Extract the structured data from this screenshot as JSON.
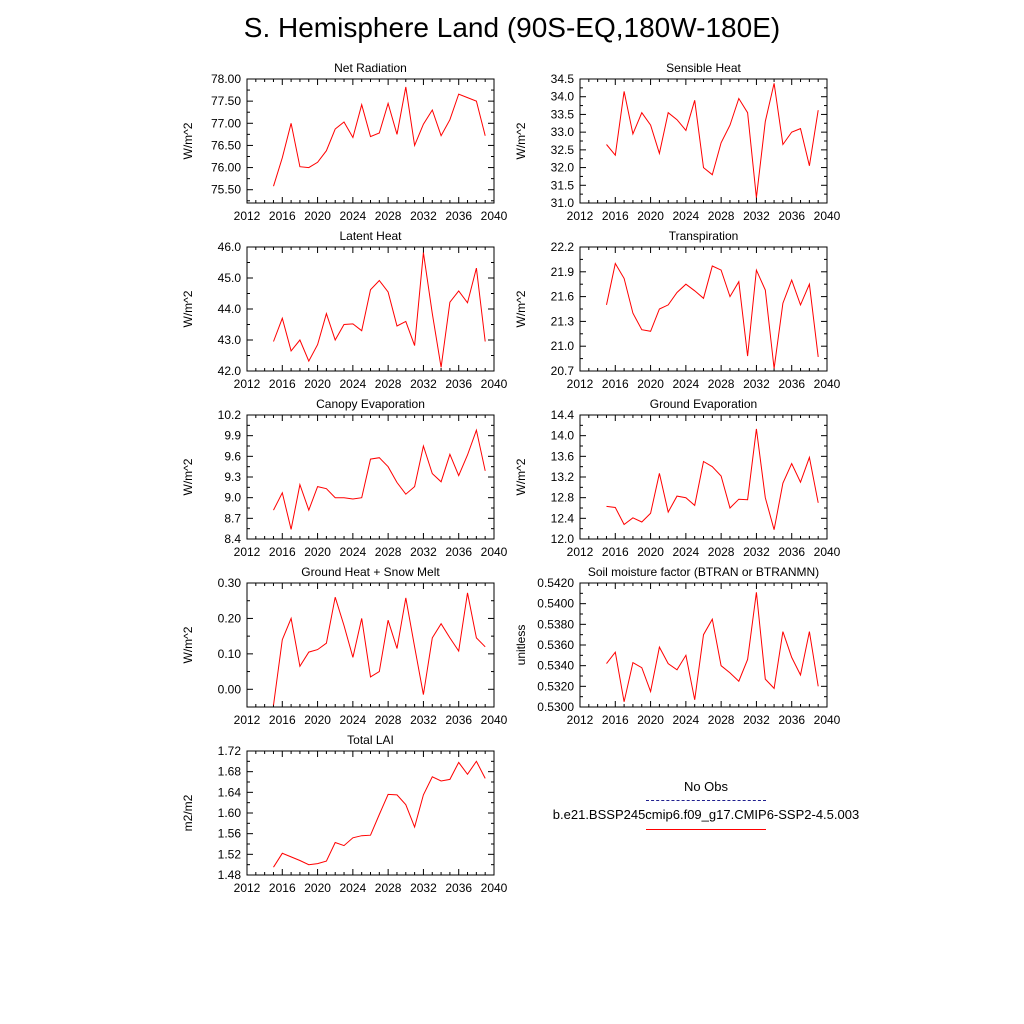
{
  "title": "S. Hemisphere Land (90S-EQ,180W-180E)",
  "legend": {
    "obs_label": "No Obs",
    "obs_color": "#1f1f8f",
    "model_label": "b.e21.BSSP245cmip6.f09_g17.CMIP6-SSP2-4.5.003",
    "model_color": "#ff0000"
  },
  "chart_data": [
    {
      "type": "line",
      "title": "Net Radiation",
      "ylabel": "W/m^2",
      "xlabel": "",
      "xlim": [
        2012,
        2040
      ],
      "ylim": [
        75.2,
        78.0
      ],
      "xticks": [
        "2012",
        "2016",
        "2020",
        "2024",
        "2028",
        "2032",
        "2036",
        "2040"
      ],
      "yticks": [
        "75.50",
        "76.00",
        "76.50",
        "77.00",
        "77.50",
        "78.00"
      ],
      "x": [
        2015,
        2016,
        2017,
        2018,
        2019,
        2020,
        2021,
        2022,
        2023,
        2024,
        2025,
        2026,
        2027,
        2028,
        2029,
        2030,
        2031,
        2032,
        2033,
        2034,
        2035,
        2036,
        2037,
        2038,
        2039
      ],
      "values": [
        75.58,
        76.22,
        77.0,
        76.02,
        76.0,
        76.12,
        76.38,
        76.87,
        77.03,
        76.68,
        77.42,
        76.7,
        76.78,
        77.45,
        76.75,
        77.82,
        76.5,
        76.98,
        77.3,
        76.72,
        77.08,
        77.66,
        77.58,
        77.5,
        76.72
      ]
    },
    {
      "type": "line",
      "title": "Sensible Heat",
      "ylabel": "W/m^2",
      "xlabel": "",
      "xlim": [
        2012,
        2040
      ],
      "ylim": [
        31.0,
        34.5
      ],
      "xticks": [
        "2012",
        "2016",
        "2020",
        "2024",
        "2028",
        "2032",
        "2036",
        "2040"
      ],
      "yticks": [
        "31.0",
        "31.5",
        "32.0",
        "32.5",
        "33.0",
        "33.5",
        "34.0",
        "34.5"
      ],
      "x": [
        2015,
        2016,
        2017,
        2018,
        2019,
        2020,
        2021,
        2022,
        2023,
        2024,
        2025,
        2026,
        2027,
        2028,
        2029,
        2030,
        2031,
        2032,
        2033,
        2034,
        2035,
        2036,
        2037,
        2038,
        2039
      ],
      "values": [
        32.65,
        32.35,
        34.15,
        32.95,
        33.55,
        33.2,
        32.4,
        33.55,
        33.35,
        33.05,
        33.9,
        32.0,
        31.8,
        32.7,
        33.2,
        33.95,
        33.55,
        31.15,
        33.3,
        34.38,
        32.65,
        33.0,
        33.1,
        32.05,
        33.62
      ]
    },
    {
      "type": "line",
      "title": "Latent Heat",
      "ylabel": "W/m^2",
      "xlabel": "",
      "xlim": [
        2012,
        2040
      ],
      "ylim": [
        42.0,
        46.0
      ],
      "xticks": [
        "2012",
        "2016",
        "2020",
        "2024",
        "2028",
        "2032",
        "2036",
        "2040"
      ],
      "yticks": [
        "42.0",
        "43.0",
        "44.0",
        "45.0",
        "46.0"
      ],
      "x": [
        2015,
        2016,
        2017,
        2018,
        2019,
        2020,
        2021,
        2022,
        2023,
        2024,
        2025,
        2026,
        2027,
        2028,
        2029,
        2030,
        2031,
        2032,
        2033,
        2034,
        2035,
        2036,
        2037,
        2038,
        2039
      ],
      "values": [
        42.95,
        43.7,
        42.65,
        43.0,
        42.32,
        42.85,
        43.85,
        43.0,
        43.5,
        43.52,
        43.3,
        44.62,
        44.92,
        44.55,
        43.45,
        43.6,
        42.82,
        45.82,
        43.85,
        42.12,
        44.22,
        44.58,
        44.2,
        45.32,
        42.95
      ]
    },
    {
      "type": "line",
      "title": "Transpiration",
      "ylabel": "W/m^2",
      "xlabel": "",
      "xlim": [
        2012,
        2040
      ],
      "ylim": [
        20.7,
        22.2
      ],
      "xticks": [
        "2012",
        "2016",
        "2020",
        "2024",
        "2028",
        "2032",
        "2036",
        "2040"
      ],
      "yticks": [
        "20.7",
        "21.0",
        "21.3",
        "21.6",
        "21.9",
        "22.2"
      ],
      "x": [
        2015,
        2016,
        2017,
        2018,
        2019,
        2020,
        2021,
        2022,
        2023,
        2024,
        2025,
        2026,
        2027,
        2028,
        2029,
        2030,
        2031,
        2032,
        2033,
        2034,
        2035,
        2036,
        2037,
        2038,
        2039
      ],
      "values": [
        21.5,
        22.0,
        21.82,
        21.4,
        21.2,
        21.18,
        21.45,
        21.5,
        21.65,
        21.75,
        21.67,
        21.58,
        21.97,
        21.92,
        21.6,
        21.78,
        20.88,
        21.92,
        21.68,
        20.73,
        21.52,
        21.8,
        21.5,
        21.75,
        20.87
      ]
    },
    {
      "type": "line",
      "title": "Canopy Evaporation",
      "ylabel": "W/m^2",
      "xlabel": "",
      "xlim": [
        2012,
        2040
      ],
      "ylim": [
        8.4,
        10.2
      ],
      "xticks": [
        "2012",
        "2016",
        "2020",
        "2024",
        "2028",
        "2032",
        "2036",
        "2040"
      ],
      "yticks": [
        "8.4",
        "8.7",
        "9.0",
        "9.3",
        "9.6",
        "9.9",
        "10.2"
      ],
      "x": [
        2015,
        2016,
        2017,
        2018,
        2019,
        2020,
        2021,
        2022,
        2023,
        2024,
        2025,
        2026,
        2027,
        2028,
        2029,
        2030,
        2031,
        2032,
        2033,
        2034,
        2035,
        2036,
        2037,
        2038,
        2039
      ],
      "values": [
        8.82,
        9.07,
        8.54,
        9.19,
        8.82,
        9.16,
        9.13,
        9.0,
        9.0,
        8.98,
        9.0,
        9.56,
        9.58,
        9.45,
        9.22,
        9.05,
        9.16,
        9.75,
        9.35,
        9.23,
        9.63,
        9.32,
        9.62,
        9.98,
        9.39
      ]
    },
    {
      "type": "line",
      "title": "Ground Evaporation",
      "ylabel": "W/m^2",
      "xlabel": "",
      "xlim": [
        2012,
        2040
      ],
      "ylim": [
        12.0,
        14.4
      ],
      "xticks": [
        "2012",
        "2016",
        "2020",
        "2024",
        "2028",
        "2032",
        "2036",
        "2040"
      ],
      "yticks": [
        "12.0",
        "12.4",
        "12.8",
        "13.2",
        "13.6",
        "14.0",
        "14.4"
      ],
      "x": [
        2015,
        2016,
        2017,
        2018,
        2019,
        2020,
        2021,
        2022,
        2023,
        2024,
        2025,
        2026,
        2027,
        2028,
        2029,
        2030,
        2031,
        2032,
        2033,
        2034,
        2035,
        2036,
        2037,
        2038,
        2039
      ],
      "values": [
        12.63,
        12.61,
        12.28,
        12.41,
        12.33,
        12.5,
        13.27,
        12.52,
        12.83,
        12.8,
        12.65,
        13.5,
        13.4,
        13.22,
        12.6,
        12.77,
        12.76,
        14.13,
        12.8,
        12.18,
        13.08,
        13.46,
        13.1,
        13.58,
        12.7
      ]
    },
    {
      "type": "line",
      "title": "Ground Heat + Snow Melt",
      "ylabel": "W/m^2",
      "xlabel": "",
      "xlim": [
        2012,
        2040
      ],
      "ylim": [
        -0.05,
        0.3
      ],
      "xticks": [
        "2012",
        "2016",
        "2020",
        "2024",
        "2028",
        "2032",
        "2036",
        "2040"
      ],
      "yticks": [
        "0.00",
        "0.10",
        "0.20",
        "0.30"
      ],
      "x": [
        2015,
        2016,
        2017,
        2018,
        2019,
        2020,
        2021,
        2022,
        2023,
        2024,
        2025,
        2026,
        2027,
        2028,
        2029,
        2030,
        2031,
        2032,
        2033,
        2034,
        2035,
        2036,
        2037,
        2038,
        2039
      ],
      "values": [
        -0.045,
        0.14,
        0.2,
        0.065,
        0.105,
        0.112,
        0.13,
        0.26,
        0.18,
        0.09,
        0.2,
        0.035,
        0.05,
        0.195,
        0.115,
        0.258,
        0.12,
        -0.015,
        0.145,
        0.185,
        0.145,
        0.108,
        0.272,
        0.145,
        0.12
      ]
    },
    {
      "type": "line",
      "title": "Soil moisture factor (BTRAN or BTRANMN)",
      "ylabel": "unitless",
      "xlabel": "",
      "xlim": [
        2012,
        2040
      ],
      "ylim": [
        0.53,
        0.542
      ],
      "xticks": [
        "2012",
        "2016",
        "2020",
        "2024",
        "2028",
        "2032",
        "2036",
        "2040"
      ],
      "yticks": [
        "0.5300",
        "0.5320",
        "0.5340",
        "0.5360",
        "0.5380",
        "0.5400",
        "0.5420"
      ],
      "x": [
        2015,
        2016,
        2017,
        2018,
        2019,
        2020,
        2021,
        2022,
        2023,
        2024,
        2025,
        2026,
        2027,
        2028,
        2029,
        2030,
        2031,
        2032,
        2033,
        2034,
        2035,
        2036,
        2037,
        2038,
        2039
      ],
      "values": [
        0.5342,
        0.5353,
        0.5305,
        0.5343,
        0.5338,
        0.5315,
        0.5358,
        0.5342,
        0.5336,
        0.535,
        0.5307,
        0.537,
        0.5385,
        0.534,
        0.5333,
        0.5325,
        0.5346,
        0.5411,
        0.5327,
        0.5318,
        0.5373,
        0.5348,
        0.5331,
        0.5373,
        0.532
      ]
    },
    {
      "type": "line",
      "title": "Total LAI",
      "ylabel": "m2/m2",
      "xlabel": "",
      "xlim": [
        2012,
        2040
      ],
      "ylim": [
        1.48,
        1.72
      ],
      "xticks": [
        "2012",
        "2016",
        "2020",
        "2024",
        "2028",
        "2032",
        "2036",
        "2040"
      ],
      "yticks": [
        "1.48",
        "1.52",
        "1.56",
        "1.60",
        "1.64",
        "1.68",
        "1.72"
      ],
      "x": [
        2015,
        2016,
        2017,
        2018,
        2019,
        2020,
        2021,
        2022,
        2023,
        2024,
        2025,
        2026,
        2027,
        2028,
        2029,
        2030,
        2031,
        2032,
        2033,
        2034,
        2035,
        2036,
        2037,
        2038,
        2039
      ],
      "values": [
        1.495,
        1.522,
        1.515,
        1.508,
        1.5,
        1.502,
        1.507,
        1.543,
        1.537,
        1.552,
        1.556,
        1.557,
        1.597,
        1.636,
        1.635,
        1.616,
        1.573,
        1.635,
        1.67,
        1.662,
        1.665,
        1.698,
        1.675,
        1.7,
        1.667
      ]
    }
  ]
}
